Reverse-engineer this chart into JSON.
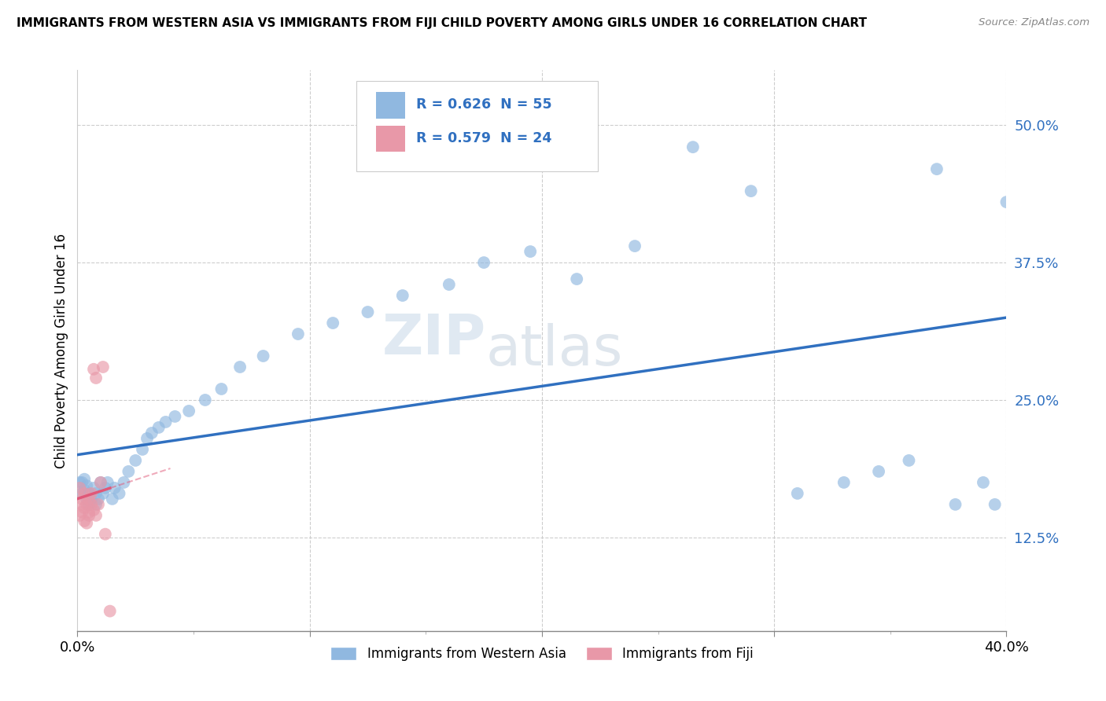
{
  "title": "IMMIGRANTS FROM WESTERN ASIA VS IMMIGRANTS FROM FIJI CHILD POVERTY AMONG GIRLS UNDER 16 CORRELATION CHART",
  "source": "Source: ZipAtlas.com",
  "ylabel_label": "Child Poverty Among Girls Under 16",
  "ytick_labels": [
    "12.5%",
    "25.0%",
    "37.5%",
    "50.0%"
  ],
  "ytick_values": [
    0.125,
    0.25,
    0.375,
    0.5
  ],
  "xlim": [
    0.0,
    0.4
  ],
  "ylim": [
    0.04,
    0.55
  ],
  "legend_entries": [
    {
      "label": "Immigrants from Western Asia",
      "R": "0.626",
      "N": "55",
      "color": "#a8c8e8"
    },
    {
      "label": "Immigrants from Fiji",
      "R": "0.579",
      "N": "24",
      "color": "#f0a0b0"
    }
  ],
  "watermark_zip": "ZIP",
  "watermark_atlas": "atlas",
  "background_color": "#ffffff",
  "grid_color": "#c8c8c8",
  "blue_dot_color": "#90b8e0",
  "pink_dot_color": "#e898a8",
  "blue_line_color": "#3070c0",
  "pink_line_color": "#e05878",
  "ytick_color": "#3070c0",
  "xtick_color": "#000000",
  "wa_x": [
    0.001,
    0.002,
    0.002,
    0.003,
    0.003,
    0.004,
    0.004,
    0.005,
    0.005,
    0.006,
    0.007,
    0.008,
    0.008,
    0.009,
    0.01,
    0.011,
    0.012,
    0.013,
    0.015,
    0.016,
    0.018,
    0.02,
    0.022,
    0.025,
    0.028,
    0.03,
    0.032,
    0.035,
    0.038,
    0.042,
    0.048,
    0.055,
    0.062,
    0.07,
    0.08,
    0.095,
    0.11,
    0.125,
    0.14,
    0.16,
    0.175,
    0.195,
    0.215,
    0.24,
    0.265,
    0.29,
    0.31,
    0.33,
    0.345,
    0.358,
    0.37,
    0.378,
    0.39,
    0.395,
    0.4
  ],
  "wa_y": [
    0.175,
    0.165,
    0.175,
    0.168,
    0.178,
    0.16,
    0.172,
    0.165,
    0.155,
    0.16,
    0.17,
    0.155,
    0.165,
    0.16,
    0.175,
    0.165,
    0.17,
    0.175,
    0.16,
    0.17,
    0.165,
    0.175,
    0.185,
    0.195,
    0.205,
    0.215,
    0.22,
    0.225,
    0.23,
    0.235,
    0.24,
    0.25,
    0.26,
    0.28,
    0.29,
    0.31,
    0.32,
    0.33,
    0.345,
    0.355,
    0.375,
    0.385,
    0.36,
    0.39,
    0.48,
    0.44,
    0.165,
    0.175,
    0.185,
    0.195,
    0.46,
    0.155,
    0.175,
    0.155,
    0.43
  ],
  "fiji_x": [
    0.001,
    0.001,
    0.002,
    0.002,
    0.002,
    0.003,
    0.003,
    0.003,
    0.004,
    0.004,
    0.005,
    0.005,
    0.005,
    0.006,
    0.006,
    0.007,
    0.007,
    0.008,
    0.008,
    0.009,
    0.01,
    0.011,
    0.012,
    0.014
  ],
  "fiji_y": [
    0.17,
    0.145,
    0.16,
    0.148,
    0.155,
    0.14,
    0.152,
    0.165,
    0.138,
    0.155,
    0.145,
    0.16,
    0.148,
    0.155,
    0.165,
    0.15,
    0.278,
    0.145,
    0.27,
    0.155,
    0.175,
    0.28,
    0.128,
    0.058
  ]
}
